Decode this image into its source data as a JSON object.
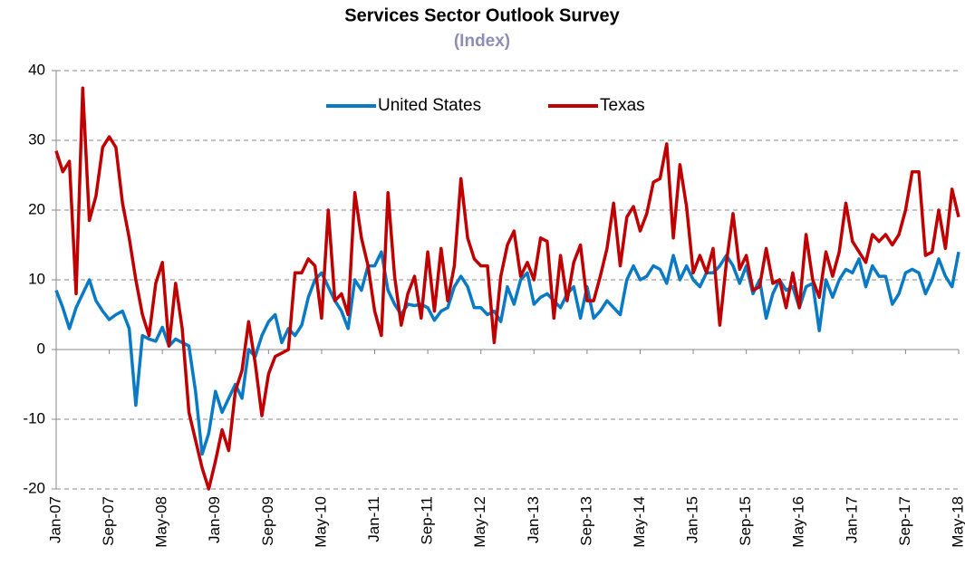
{
  "chart_data": {
    "type": "line",
    "title": "Services Sector Outlook Survey",
    "subtitle": "(Index)",
    "categories": [
      "Jan-07",
      null,
      null,
      null,
      null,
      null,
      null,
      null,
      "Sep-07",
      null,
      null,
      null,
      null,
      null,
      null,
      null,
      "May-08",
      null,
      null,
      null,
      null,
      null,
      null,
      null,
      "Jan-09",
      null,
      null,
      null,
      null,
      null,
      null,
      null,
      "Sep-09",
      null,
      null,
      null,
      null,
      null,
      null,
      null,
      "May-10",
      null,
      null,
      null,
      null,
      null,
      null,
      null,
      "Jan-11",
      null,
      null,
      null,
      null,
      null,
      null,
      null,
      "Sep-11",
      null,
      null,
      null,
      null,
      null,
      null,
      null,
      "May-12",
      null,
      null,
      null,
      null,
      null,
      null,
      null,
      "Jan-13",
      null,
      null,
      null,
      null,
      null,
      null,
      null,
      "Sep-13",
      null,
      null,
      null,
      null,
      null,
      null,
      null,
      "May-14",
      null,
      null,
      null,
      null,
      null,
      null,
      null,
      "Jan-15",
      null,
      null,
      null,
      null,
      null,
      null,
      null,
      "Sep-15",
      null,
      null,
      null,
      null,
      null,
      null,
      null,
      "May-16",
      null,
      null,
      null,
      null,
      null,
      null,
      null,
      "Jan-17",
      null,
      null,
      null,
      null,
      null,
      null,
      null,
      "Sep-17",
      null,
      null,
      null,
      null,
      null,
      null,
      null,
      "May-18"
    ],
    "series": [
      {
        "name": "United States",
        "color": "#0a7ac4",
        "values": [
          8.5,
          6,
          3,
          6,
          8,
          10,
          7,
          5.5,
          4.3,
          5,
          5.5,
          3,
          -8,
          2,
          1.5,
          1.2,
          3.2,
          0.5,
          1.5,
          1,
          0.5,
          -6,
          -15,
          -12,
          -6,
          -9,
          -7,
          -5,
          -7,
          0,
          -1,
          2,
          4,
          5,
          1,
          3,
          2,
          3.5,
          7.5,
          10,
          11,
          9,
          7,
          5.5,
          3,
          10,
          8.5,
          12,
          12,
          14,
          8.5,
          6.5,
          5,
          6.5,
          6.3,
          6.5,
          6,
          4.2,
          5.5,
          6,
          9,
          10.5,
          9,
          6,
          6,
          5,
          5.5,
          4,
          9,
          6.5,
          10,
          11,
          6.5,
          7.5,
          8,
          7,
          6,
          8,
          9,
          4.5,
          9,
          4.5,
          5.5,
          7,
          6,
          5,
          10,
          12,
          10,
          10.5,
          12,
          11.5,
          9.5,
          13.5,
          10,
          12,
          10,
          9,
          11,
          11,
          12,
          13.5,
          12,
          9.5,
          12,
          8,
          10,
          4.5,
          8,
          10,
          8.5,
          9,
          6,
          9,
          9.5,
          2.7,
          10,
          7.5,
          10,
          11.5,
          11,
          13,
          9,
          12,
          10.5,
          10.5,
          6.5,
          8,
          11,
          11.5,
          11,
          8,
          10,
          13,
          10.5,
          9,
          14
        ]
      },
      {
        "name": "Texas",
        "color": "#c00000",
        "values": [
          28.5,
          25.5,
          27,
          8,
          37.5,
          18.5,
          22,
          29,
          30.5,
          29,
          21,
          16,
          10,
          5,
          2,
          9.5,
          12.5,
          0.5,
          9.5,
          3,
          -9,
          -13,
          -17,
          -20,
          -16,
          -11.5,
          -14.5,
          -6,
          -3,
          4,
          -2,
          -9.5,
          -3.5,
          -1,
          -0.5,
          0,
          11,
          11,
          13,
          12,
          4.5,
          20,
          7,
          8,
          5,
          22.5,
          16,
          12,
          5.5,
          2,
          22.5,
          10.5,
          3.5,
          8,
          10.5,
          4.5,
          14,
          5.5,
          14.5,
          7,
          12,
          24.5,
          16,
          13,
          12,
          12,
          1,
          10.5,
          15,
          17,
          10.5,
          12.5,
          10,
          16,
          15.5,
          4.5,
          13.5,
          7,
          12.5,
          15,
          7,
          7,
          10.5,
          14.5,
          21,
          12,
          19,
          20.5,
          17,
          19.5,
          24,
          24.5,
          29.5,
          16,
          26.5,
          20.5,
          11,
          13.5,
          11,
          14.5,
          3.5,
          12.5,
          19.5,
          11.5,
          13.5,
          8.5,
          9,
          14.5,
          9.5,
          10,
          6,
          11,
          6,
          16.5,
          10,
          7.5,
          14,
          10.5,
          14,
          21,
          15.5,
          14,
          12.5,
          16.5,
          15.5,
          16.5,
          15,
          16.5,
          20,
          25.5,
          25.5,
          13.5,
          14,
          20,
          14.5,
          23,
          19
        ]
      }
    ],
    "ylim": [
      -20,
      40
    ],
    "yticks": [
      -20,
      -10,
      0,
      10,
      20,
      30,
      40
    ],
    "grid": true,
    "legend": "top"
  }
}
